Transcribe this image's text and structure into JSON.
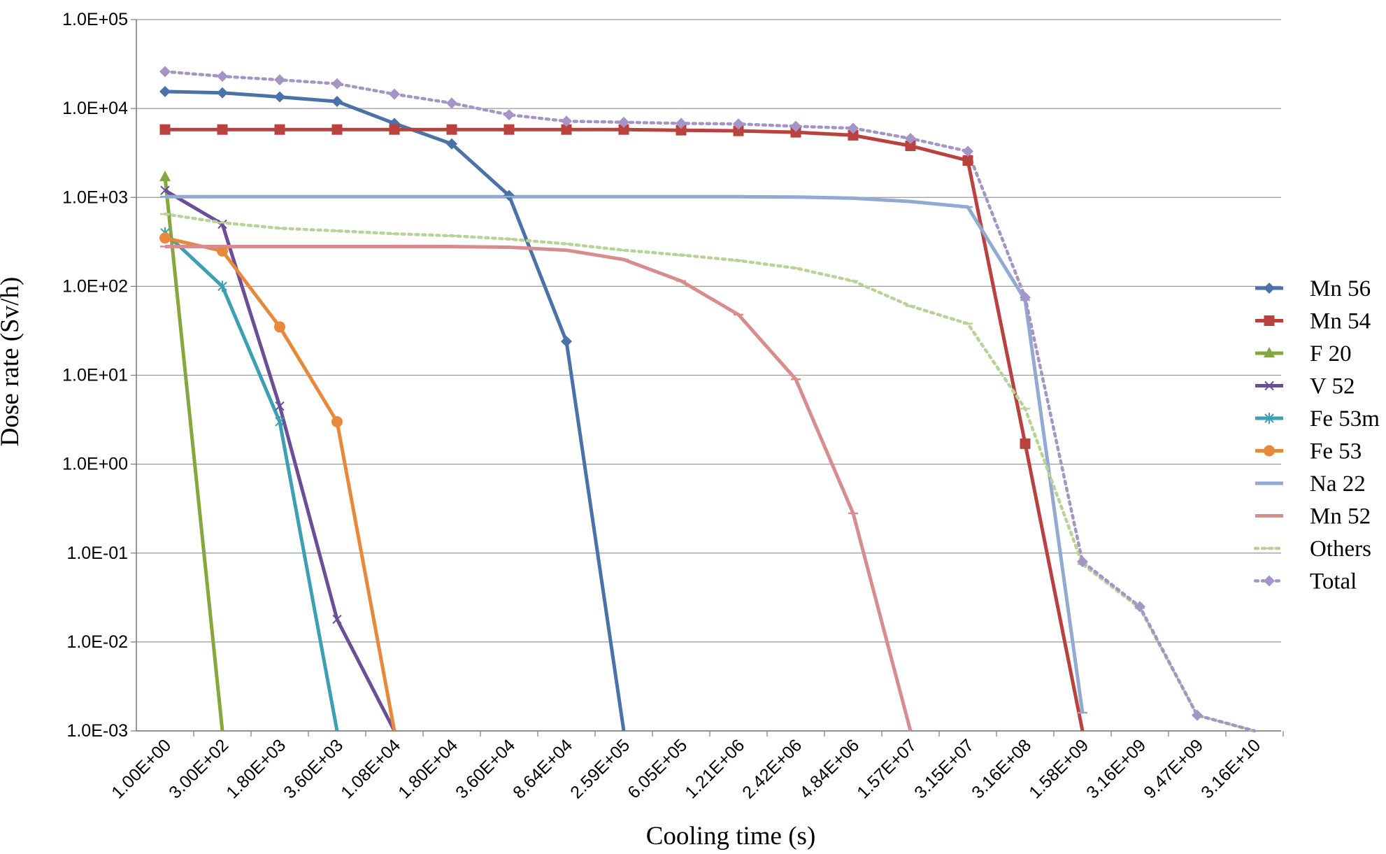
{
  "chart_data": {
    "type": "line",
    "title": "",
    "xlabel": "Cooling time (s)",
    "ylabel": "Dose rate (Sv/h)",
    "yscale": "log",
    "ylim": [
      0.001,
      100000
    ],
    "grid": true,
    "legend_position": "right",
    "y_ticks": [
      "1.0E+05",
      "1.0E+04",
      "1.0E+03",
      "1.0E+02",
      "1.0E+01",
      "1.0E+00",
      "1.0E-01",
      "1.0E-02",
      "1.0E-03"
    ],
    "categories": [
      "1.00E+00",
      "3.00E+02",
      "1.80E+03",
      "3.60E+03",
      "1.08E+04",
      "1.80E+04",
      "3.60E+04",
      "8.64E+04",
      "2.59E+05",
      "6.05E+05",
      "1.21E+06",
      "2.42E+06",
      "4.84E+06",
      "1.57E+07",
      "3.15E+07",
      "3.16E+08",
      "1.58E+09",
      "3.16E+09",
      "9.47E+09",
      "3.16E+10"
    ],
    "series": [
      {
        "name": "Mn 56",
        "color": "#4a72a8",
        "marker": "diamond",
        "dash": "solid",
        "values": [
          15500,
          15000,
          13500,
          12000,
          6800,
          4000,
          1050,
          24,
          0.001,
          null,
          null,
          null,
          null,
          null,
          null,
          null,
          null,
          null,
          null,
          null
        ]
      },
      {
        "name": "Mn 54",
        "color": "#b9413e",
        "marker": "square",
        "dash": "solid",
        "values": [
          5800,
          5800,
          5800,
          5800,
          5800,
          5800,
          5800,
          5800,
          5800,
          5700,
          5600,
          5400,
          5000,
          3800,
          2600,
          1.7,
          0.001,
          null,
          null,
          null
        ]
      },
      {
        "name": "F 20",
        "color": "#86a63e",
        "marker": "triangle",
        "dash": "solid",
        "values": [
          1700,
          0.001,
          null,
          null,
          null,
          null,
          null,
          null,
          null,
          null,
          null,
          null,
          null,
          null,
          null,
          null,
          null,
          null,
          null,
          null
        ]
      },
      {
        "name": "V 52",
        "color": "#6b4f96",
        "marker": "x",
        "dash": "solid",
        "values": [
          1200,
          500,
          4.5,
          0.018,
          0.001,
          null,
          null,
          null,
          null,
          null,
          null,
          null,
          null,
          null,
          null,
          null,
          null,
          null,
          null,
          null
        ]
      },
      {
        "name": "Fe 53m",
        "color": "#3c9fb4",
        "marker": "star",
        "dash": "solid",
        "values": [
          400,
          100,
          3,
          0.001,
          null,
          null,
          null,
          null,
          null,
          null,
          null,
          null,
          null,
          null,
          null,
          null,
          null,
          null,
          null,
          null
        ]
      },
      {
        "name": "Fe 53",
        "color": "#e8883a",
        "marker": "circle",
        "dash": "solid",
        "values": [
          350,
          250,
          35,
          3,
          0.001,
          null,
          null,
          null,
          null,
          null,
          null,
          null,
          null,
          null,
          null,
          null,
          null,
          null,
          null,
          null
        ]
      },
      {
        "name": "Na 22",
        "color": "#92aad2",
        "marker": "dash",
        "dash": "solid",
        "values": [
          1020,
          1020,
          1020,
          1020,
          1020,
          1020,
          1020,
          1020,
          1020,
          1020,
          1020,
          1010,
          980,
          900,
          780,
          70,
          0.0016,
          null,
          null,
          null
        ]
      },
      {
        "name": "Mn 52",
        "color": "#d78d8e",
        "marker": "dash",
        "dash": "solid",
        "values": [
          280,
          280,
          280,
          280,
          280,
          280,
          275,
          255,
          200,
          115,
          48,
          9,
          0.28,
          0.001,
          null,
          null,
          null,
          null,
          null,
          null
        ]
      },
      {
        "name": "Others",
        "color": "#b8d39a",
        "marker": "dash",
        "dash": "dotted",
        "values": [
          650,
          520,
          450,
          420,
          390,
          370,
          340,
          300,
          255,
          225,
          195,
          160,
          115,
          60,
          38,
          4.2,
          0.075,
          0.024,
          0.0015,
          0.001
        ]
      },
      {
        "name": "Total",
        "color": "#a495c6",
        "marker": "diamond",
        "dash": "dotted",
        "values": [
          26000,
          23000,
          21000,
          19000,
          14500,
          11500,
          8500,
          7200,
          7000,
          6800,
          6700,
          6300,
          6000,
          4600,
          3300,
          75,
          0.08,
          0.025,
          0.0015,
          0.001
        ]
      }
    ]
  }
}
